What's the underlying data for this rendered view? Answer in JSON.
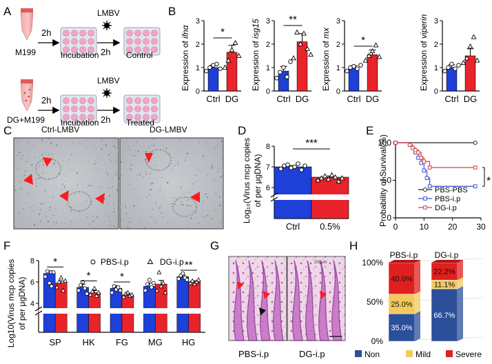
{
  "figure": {
    "panel_letters": [
      "A",
      "B",
      "C",
      "D",
      "E",
      "F",
      "G",
      "H"
    ]
  },
  "colors": {
    "ctrl": "#1f3fd9",
    "dg": "#e8232a",
    "pbs_pbs": "#222222",
    "pbs_ip": "#3b4fd6",
    "dg_ip": "#d94141",
    "non": "#2c4f9a",
    "mild": "#f3c95c",
    "severe": "#e01f1f"
  },
  "panel_a": {
    "row1": {
      "sample": "M199",
      "step1_time": "2h",
      "step1_label": "Incubation",
      "virus": "LMBV",
      "step2_time": "2h",
      "result": "Control"
    },
    "row2": {
      "sample": "DG+M199",
      "step1_time": "2h",
      "step1_label": "Incubation",
      "virus": "LMBV",
      "step2_time": "2h",
      "result": "Treated"
    }
  },
  "panel_c": {
    "left_label": "Ctrl-LMBV",
    "right_label": "DG-LMBV"
  },
  "panel_g": {
    "left_label": "PBS-i.p",
    "right_label": "DG-i.p",
    "scale_text": "200μm"
  },
  "chart_data": [
    {
      "id": "B1",
      "type": "bar",
      "categories": [
        "Ctrl",
        "DG"
      ],
      "values": [
        1.0,
        1.65
      ],
      "errors": [
        0.1,
        0.3
      ],
      "points": [
        [
          0.85,
          1.0,
          1.1,
          1.15,
          0.95
        ],
        [
          1.0,
          1.3,
          1.75,
          2.05,
          1.5
        ]
      ],
      "ylabel_prefix": "Expression of ",
      "ylabel_gene": "ifnα",
      "ylim": [
        0,
        3
      ],
      "yticks": [
        0,
        1,
        2,
        3
      ],
      "significance": "*"
    },
    {
      "id": "B2",
      "type": "bar",
      "categories": [
        "Ctrl",
        "DG"
      ],
      "values": [
        0.85,
        2.1
      ],
      "errors": [
        0.2,
        0.35
      ],
      "points": [
        [
          0.55,
          0.8,
          1.0,
          0.6,
          1.25
        ],
        [
          1.4,
          2.5,
          2.0,
          2.45,
          1.8,
          1.55
        ]
      ],
      "ylabel_prefix": "Expression of ",
      "ylabel_gene": "isg15",
      "ylim": [
        0,
        3
      ],
      "yticks": [
        0,
        1,
        2,
        3
      ],
      "significance": "**"
    },
    {
      "id": "B3",
      "type": "bar",
      "categories": [
        "Ctrl",
        "DG"
      ],
      "values": [
        1.0,
        1.55
      ],
      "errors": [
        0.08,
        0.2
      ],
      "points": [
        [
          0.85,
          1.0,
          1.05,
          0.95,
          1.1
        ],
        [
          1.3,
          1.5,
          1.7,
          1.95,
          1.45
        ]
      ],
      "ylabel_prefix": "Expression of ",
      "ylabel_gene": "mx",
      "ylim": [
        0,
        3
      ],
      "yticks": [
        0,
        1,
        2,
        3
      ],
      "significance": "*"
    },
    {
      "id": "B4",
      "type": "bar",
      "categories": [
        "Ctrl",
        "DG"
      ],
      "values": [
        1.0,
        1.5
      ],
      "errors": [
        0.12,
        0.3
      ],
      "points": [
        [
          0.85,
          1.0,
          1.15,
          0.95,
          1.1
        ],
        [
          1.2,
          1.4,
          1.9,
          2.3,
          1.3
        ]
      ],
      "ylabel_prefix": "Expression of ",
      "ylabel_gene": "viperin",
      "ylim": [
        0,
        3
      ],
      "yticks": [
        0,
        1,
        2,
        3
      ],
      "significance": ""
    },
    {
      "id": "D",
      "type": "bar",
      "title": "",
      "categories": [
        "Ctrl",
        "0.5%"
      ],
      "values": [
        7.0,
        6.5
      ],
      "errors": [
        0.06,
        0.06
      ],
      "points": [
        [
          6.9,
          7.05,
          7.1,
          6.95,
          7.0,
          7.15,
          6.85,
          7.05
        ],
        [
          6.35,
          6.45,
          6.55,
          6.4,
          6.6,
          6.5,
          6.3,
          6.45
        ]
      ],
      "ylabel_line1": "Log₁₀(Virus mcp copies",
      "ylabel_line2": "of  per μgDNA)",
      "ylim": [
        6,
        8
      ],
      "yticks": [
        6,
        7,
        8
      ],
      "axis_break": true,
      "significance": "***"
    },
    {
      "id": "E",
      "type": "line",
      "ylabel": "Probability of Survival(%)",
      "xlim": [
        0,
        30
      ],
      "ylim": [
        0,
        100
      ],
      "xticks": [
        0,
        10,
        20,
        30
      ],
      "yticks": [
        0,
        50,
        100
      ],
      "series": [
        {
          "name": "PBS-PBS",
          "x": [
            0,
            28
          ],
          "y": [
            100,
            100
          ]
        },
        {
          "name": "PBS-i.p",
          "x": [
            0,
            5,
            6,
            7,
            8,
            9,
            10,
            11,
            12,
            28
          ],
          "y": [
            100,
            97,
            93,
            87,
            80,
            73,
            63,
            53,
            42,
            42
          ]
        },
        {
          "name": "DG-i.p",
          "x": [
            0,
            5,
            6,
            7,
            8,
            9,
            10,
            12,
            28
          ],
          "y": [
            100,
            97,
            93,
            90,
            87,
            80,
            75,
            67,
            67
          ]
        }
      ],
      "significance": "*"
    },
    {
      "id": "F",
      "type": "bar",
      "categories": [
        "SP",
        "HK",
        "FG",
        "MG",
        "HG"
      ],
      "series": [
        {
          "name": "PBS-i.p",
          "values": [
            6.8,
            5.5,
            5.4,
            5.6,
            6.5
          ],
          "errors": [
            0.25,
            0.3,
            0.25,
            0.3,
            0.15
          ],
          "points": [
            [
              6.5,
              7.0,
              5.9,
              5.6,
              6.9
            ],
            [
              5.2,
              5.7,
              6.0,
              5.4,
              4.9
            ],
            [
              5.0,
              5.6,
              5.3,
              5.5,
              5.2
            ],
            [
              5.2,
              5.8,
              6.2,
              5.5,
              5.9
            ],
            [
              6.3,
              6.6,
              6.8,
              6.4,
              6.2
            ]
          ]
        },
        {
          "name": "DG-i.p",
          "values": [
            5.9,
            5.0,
            4.8,
            5.8,
            6.0
          ],
          "errors": [
            0.2,
            0.2,
            0.15,
            0.35,
            0.1
          ],
          "points": [
            [
              5.5,
              6.0,
              6.4,
              5.2,
              6.1
            ],
            [
              4.8,
              5.1,
              5.4,
              4.7,
              5.0
            ],
            [
              4.6,
              4.9,
              5.0,
              4.7,
              4.8
            ],
            [
              5.2,
              6.9,
              5.6,
              5.9,
              5.0
            ],
            [
              5.9,
              6.1,
              5.8,
              6.0,
              6.2
            ]
          ]
        }
      ],
      "ylabel_line1": "Log10(Virus mcp copies",
      "ylabel_line2": "of  per μgDNA)",
      "ylim": [
        4,
        8
      ],
      "yticks": [
        4,
        6,
        8
      ],
      "axis_break": true,
      "significance": [
        "*",
        "*",
        "*",
        "",
        "**"
      ]
    },
    {
      "id": "H",
      "type": "bar",
      "stacked": true,
      "categories": [
        "PBS-i.p",
        "DG-i.p"
      ],
      "series": [
        {
          "name": "Non",
          "values": [
            35.0,
            66.7
          ],
          "labels": [
            "35.0%",
            "66.7%"
          ]
        },
        {
          "name": "Mild",
          "values": [
            25.0,
            11.1
          ],
          "labels": [
            "25.0%",
            "11.1%"
          ]
        },
        {
          "name": "Severe",
          "values": [
            40.0,
            22.2
          ],
          "labels": [
            "40.0%",
            "22.2%"
          ]
        }
      ],
      "ylim": [
        0,
        100
      ],
      "yticks": [
        0,
        50,
        100
      ],
      "ytick_labels": [
        "0%",
        "50%",
        "100%"
      ]
    }
  ]
}
